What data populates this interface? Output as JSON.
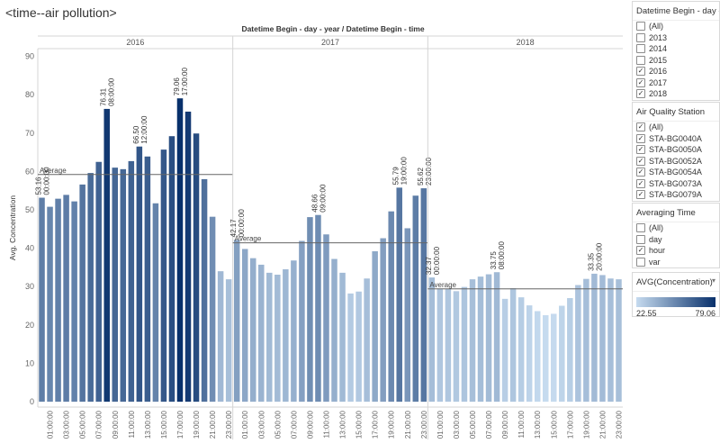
{
  "sheet_title": "<time--air pollution>",
  "chart_data": {
    "type": "bar",
    "title": "Datetime Begin - day - year  /  Datetime Begin - time",
    "ylabel": "Avg. Concentration",
    "ylim": [
      0,
      90
    ],
    "yticks": [
      0,
      10,
      20,
      30,
      40,
      50,
      60,
      70,
      80,
      90
    ],
    "grid": false,
    "reference_line_label": "Average",
    "color_scale": {
      "min": 22.55,
      "max": 79.06,
      "low_color": "#c6dbef",
      "high_color": "#08306b"
    },
    "panels": [
      {
        "year": "2016",
        "average": 59.2,
        "tick_labels": [
          "01:00:00",
          "03:00:00",
          "05:00:00",
          "07:00:00",
          "09:00:00",
          "11:00:00",
          "13:00:00",
          "15:00:00",
          "17:00:00",
          "19:00:00",
          "21:00:00",
          "23:00:00"
        ],
        "values": [
          53.16,
          50.8,
          52.9,
          53.9,
          52.2,
          56.6,
          59.6,
          62.5,
          76.31,
          61.0,
          60.6,
          62.7,
          66.5,
          63.9,
          51.7,
          65.7,
          69.2,
          79.06,
          75.6,
          69.9,
          58.0,
          48.2,
          34.0,
          31.9
        ],
        "labels": [
          {
            "index": 0,
            "value": "53.16",
            "time": "00:00:00"
          },
          {
            "index": 8,
            "value": "76.31",
            "time": "08:00:00"
          },
          {
            "index": 12,
            "value": "66.50",
            "time": "12:00:00"
          },
          {
            "index": 17,
            "value": "79.06",
            "time": "17:00:00"
          }
        ]
      },
      {
        "year": "2017",
        "average": 41.4,
        "tick_labels": [
          "01:00:00",
          "03:00:00",
          "05:00:00",
          "07:00:00",
          "09:00:00",
          "11:00:00",
          "13:00:00",
          "15:00:00",
          "17:00:00",
          "19:00:00",
          "21:00:00",
          "23:00:00"
        ],
        "values": [
          42.17,
          39.8,
          37.4,
          35.7,
          33.6,
          33.1,
          34.5,
          36.8,
          41.9,
          48.1,
          48.66,
          43.6,
          37.2,
          33.6,
          28.2,
          28.7,
          32.1,
          39.2,
          42.6,
          49.6,
          55.79,
          45.2,
          53.7,
          55.62
        ],
        "labels": [
          {
            "index": 0,
            "value": "42.17",
            "time": "00:00:00"
          },
          {
            "index": 10,
            "value": "48.66",
            "time": "09:00:00"
          },
          {
            "index": 20,
            "value": "55.79",
            "time": "19:00:00"
          },
          {
            "index": 23,
            "value": "55.62",
            "time": "23:00:00"
          }
        ]
      },
      {
        "year": "2018",
        "average": 29.4,
        "tick_labels": [
          "01:00:00",
          "03:00:00",
          "05:00:00",
          "07:00:00",
          "09:00:00",
          "11:00:00",
          "13:00:00",
          "15:00:00",
          "17:00:00",
          "19:00:00",
          "21:00:00",
          "23:00:00"
        ],
        "values": [
          32.37,
          29.5,
          29.4,
          28.8,
          29.9,
          31.9,
          32.6,
          33.2,
          33.75,
          26.8,
          29.6,
          27.2,
          25.1,
          23.6,
          22.55,
          22.9,
          25.0,
          27.0,
          30.4,
          32.0,
          33.35,
          33.0,
          32.1,
          31.9
        ],
        "labels": [
          {
            "index": 0,
            "value": "32.37",
            "time": "00:00:00"
          },
          {
            "index": 8,
            "value": "33.75",
            "time": "08:00:00"
          },
          {
            "index": 20,
            "value": "33.35",
            "time": "20:00:00"
          }
        ]
      }
    ]
  },
  "filters": {
    "year_filter": {
      "title": "Datetime Begin - day - y...",
      "options": [
        {
          "label": "(All)",
          "checked": false
        },
        {
          "label": "2013",
          "checked": false
        },
        {
          "label": "2014",
          "checked": false
        },
        {
          "label": "2015",
          "checked": false
        },
        {
          "label": "2016",
          "checked": true
        },
        {
          "label": "2017",
          "checked": true
        },
        {
          "label": "2018",
          "checked": true
        }
      ]
    },
    "station_filter": {
      "title": "Air Quality Station",
      "options": [
        {
          "label": "(All)",
          "checked": true
        },
        {
          "label": "STA-BG0040A",
          "checked": true
        },
        {
          "label": "STA-BG0050A",
          "checked": true
        },
        {
          "label": "STA-BG0052A",
          "checked": true
        },
        {
          "label": "STA-BG0054A",
          "checked": true
        },
        {
          "label": "STA-BG0073A",
          "checked": true
        },
        {
          "label": "STA-BG0079A",
          "checked": true
        }
      ]
    },
    "averaging_filter": {
      "title": "Averaging Time",
      "options": [
        {
          "label": "(All)",
          "checked": false
        },
        {
          "label": "day",
          "checked": false
        },
        {
          "label": "hour",
          "checked": true
        },
        {
          "label": "var",
          "checked": false
        }
      ]
    },
    "legend": {
      "title": "AVG(Concentration)",
      "min_label": "22.55",
      "max_label": "79.06"
    }
  }
}
